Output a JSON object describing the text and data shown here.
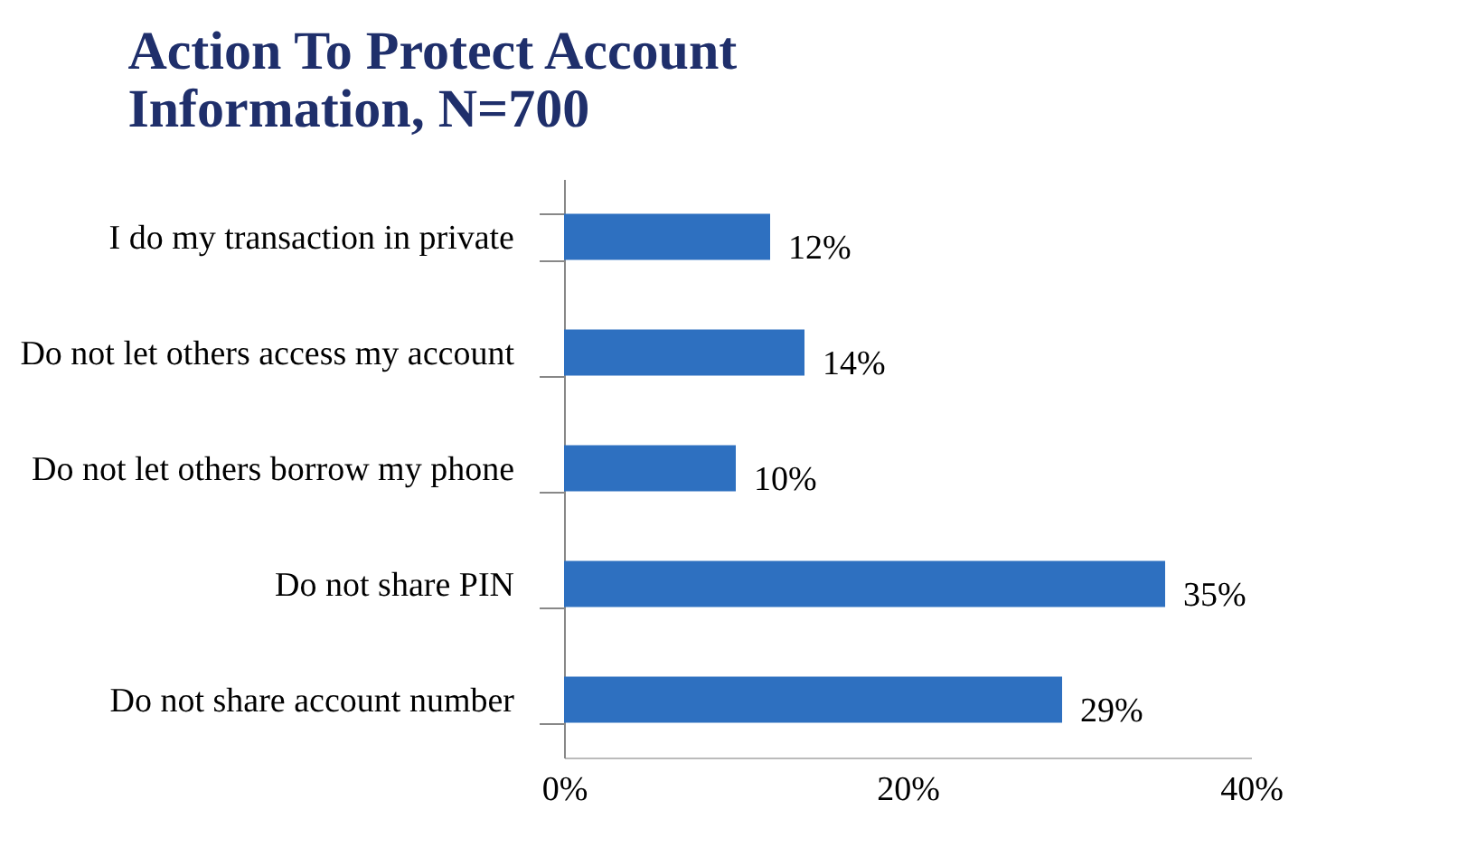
{
  "chart_data": {
    "type": "bar",
    "orientation": "horizontal",
    "title": "Action To Protect Account\nInformation, N=700",
    "categories": [
      "I do my transaction in private",
      "Do not let others access my account",
      "Do not let others borrow my phone",
      "Do not share PIN",
      "Do not share account number"
    ],
    "values": [
      12,
      14,
      10,
      35,
      29
    ],
    "color": "#2e70c0",
    "value_labels": [
      "12%",
      "14%",
      "10%",
      "35%",
      "29%"
    ],
    "xlim": [
      0,
      40
    ],
    "xticks": [
      {
        "value": 0,
        "label": "0%"
      },
      {
        "value": 20,
        "label": "20%"
      },
      {
        "value": 40,
        "label": "40%"
      }
    ],
    "grid": false
  }
}
